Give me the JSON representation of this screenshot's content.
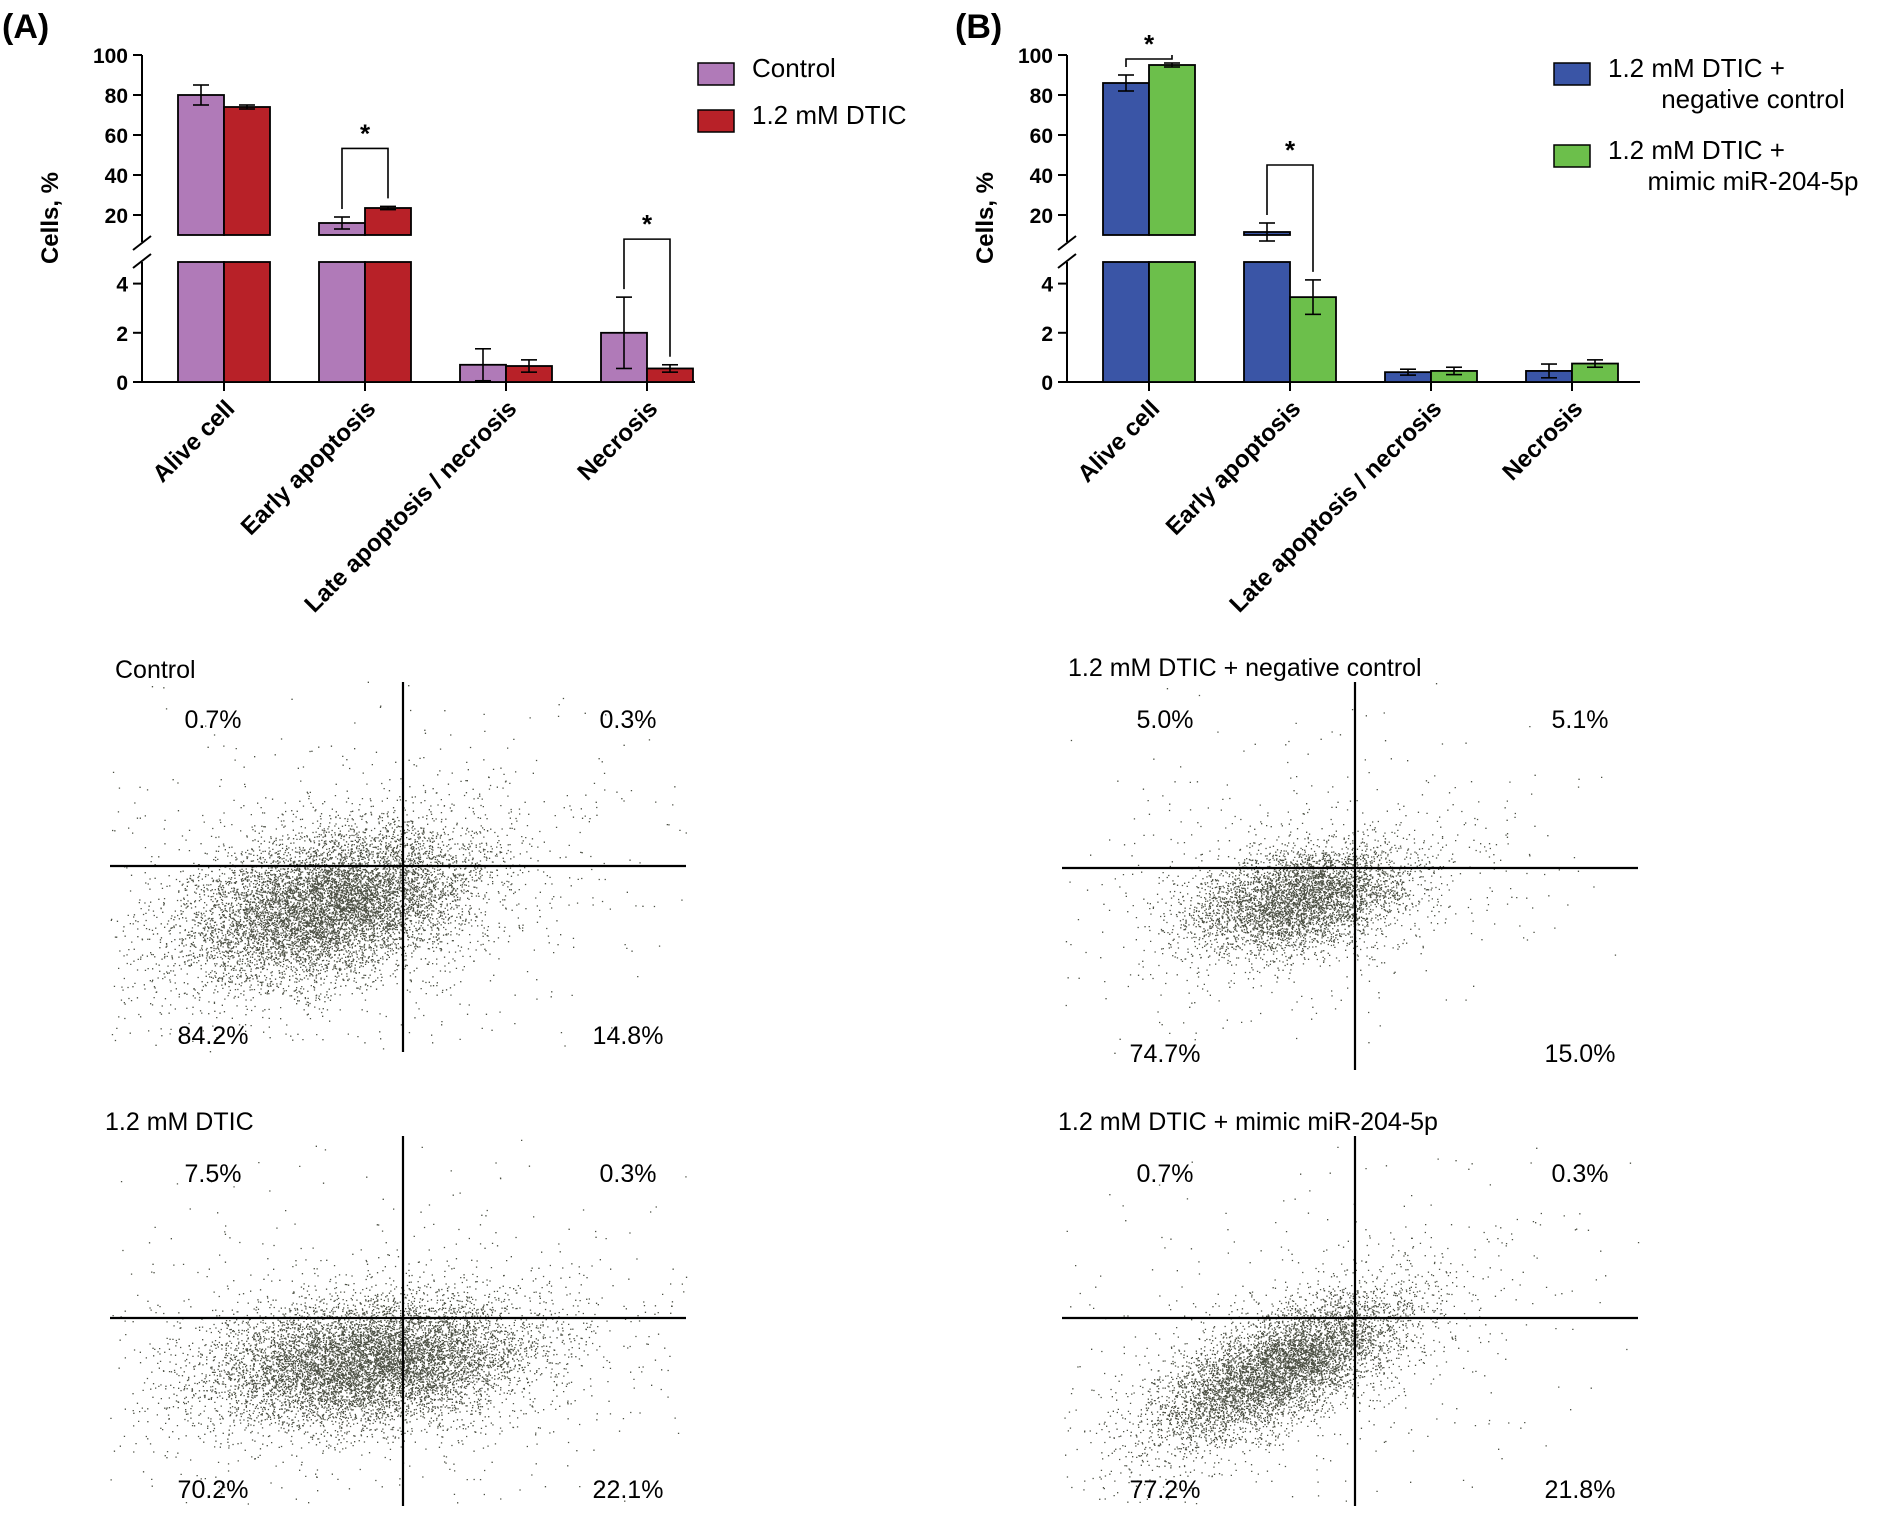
{
  "panels": [
    {
      "label": "(A)",
      "chart_data": {
        "type": "bar",
        "categories": [
          "Alive cell",
          "Early apoptosis",
          "Late apoptosis / necrosis",
          "Necrosis"
        ],
        "ylabel": "Cells, %",
        "yaxis_break": {
          "lower": [
            0,
            5
          ],
          "upper": [
            10,
            100
          ]
        },
        "yticks_lower": [
          0,
          2,
          4
        ],
        "yticks_upper": [
          20,
          40,
          60,
          80,
          100
        ],
        "legend_position": "top-right",
        "series": [
          {
            "name": "Control",
            "color": "#b07ab8",
            "values": [
              80,
              16,
              0.7,
              2.0
            ],
            "errors": [
              5,
              3,
              0.65,
              1.45
            ]
          },
          {
            "name": "1.2 mM DTIC",
            "color": "#b82128",
            "values": [
              74,
              23.5,
              0.65,
              0.55
            ],
            "errors": [
              1,
              0.8,
              0.25,
              0.15
            ]
          }
        ],
        "significance": [
          {
            "category": 1,
            "label": "*"
          },
          {
            "category": 3,
            "label": "*"
          }
        ]
      }
    },
    {
      "label": "(B)",
      "chart_data": {
        "type": "bar",
        "categories": [
          "Alive cell",
          "Early apoptosis",
          "Late apoptosis / necrosis",
          "Necrosis"
        ],
        "ylabel": "Cells, %",
        "yaxis_break": {
          "lower": [
            0,
            5
          ],
          "upper": [
            10,
            100
          ]
        },
        "yticks_lower": [
          0,
          2,
          4
        ],
        "yticks_upper": [
          20,
          40,
          60,
          80,
          100
        ],
        "legend_position": "top-right",
        "series": [
          {
            "name": "1.2 mM DTIC + negative control",
            "color": "#3a55a6",
            "values": [
              86,
              11.5,
              0.4,
              0.45
            ],
            "errors": [
              4,
              4.5,
              0.12,
              0.28
            ]
          },
          {
            "name": "1.2 mM DTIC + mimic miR-204-5p",
            "color": "#6cbf4b",
            "values": [
              95,
              3.45,
              0.45,
              0.75
            ],
            "errors": [
              1,
              0.7,
              0.15,
              0.15
            ]
          }
        ],
        "significance": [
          {
            "category": 0,
            "label": "*"
          },
          {
            "category": 1,
            "label": "*"
          }
        ]
      }
    }
  ],
  "flow_plots": [
    {
      "title": "Control",
      "quadrants": {
        "ul": "0.7%",
        "ur": "0.3%",
        "ll": "84.2%",
        "lr": "14.8%"
      }
    },
    {
      "title": "1.2 mM DTIC + negative control",
      "quadrants": {
        "ul": "5.0%",
        "ur": "5.1%",
        "ll": "74.7%",
        "lr": "15.0%"
      }
    },
    {
      "title": "1.2 mM DTIC",
      "quadrants": {
        "ul": "7.5%",
        "ur": "0.3%",
        "ll": "70.2%",
        "lr": "22.1%"
      }
    },
    {
      "title": "1.2 mM DTIC + mimic miR-204-5p",
      "quadrants": {
        "ul": "0.7%",
        "ur": "0.3%",
        "ll": "77.2%",
        "lr": "21.8%"
      }
    }
  ],
  "colors": {
    "dots": "#2e3324",
    "axis": "#000000"
  }
}
